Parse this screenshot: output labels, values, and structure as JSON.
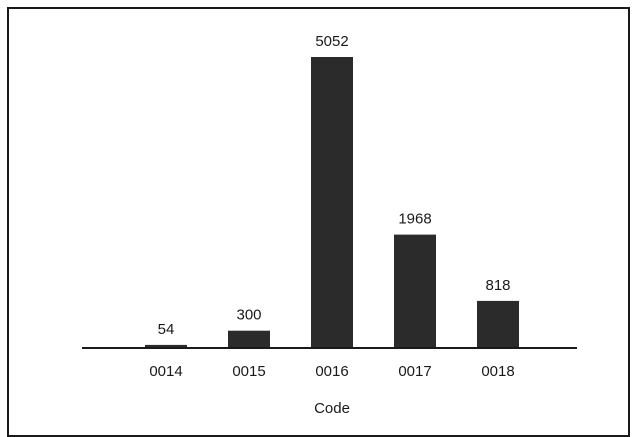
{
  "chart_data": {
    "type": "bar",
    "title": "",
    "xlabel": "Code",
    "ylabel": "",
    "categories": [
      "0014",
      "0015",
      "0016",
      "0017",
      "0018"
    ],
    "values": [
      54,
      300,
      5052,
      1968,
      818
    ],
    "data_labels": [
      "54",
      "300",
      "5052",
      "1968",
      "818"
    ],
    "ylim": [
      0,
      5300
    ],
    "grid": false,
    "legend": "none",
    "bar_color": "#2b2b2b",
    "axis_color": "#1a1a1a"
  }
}
